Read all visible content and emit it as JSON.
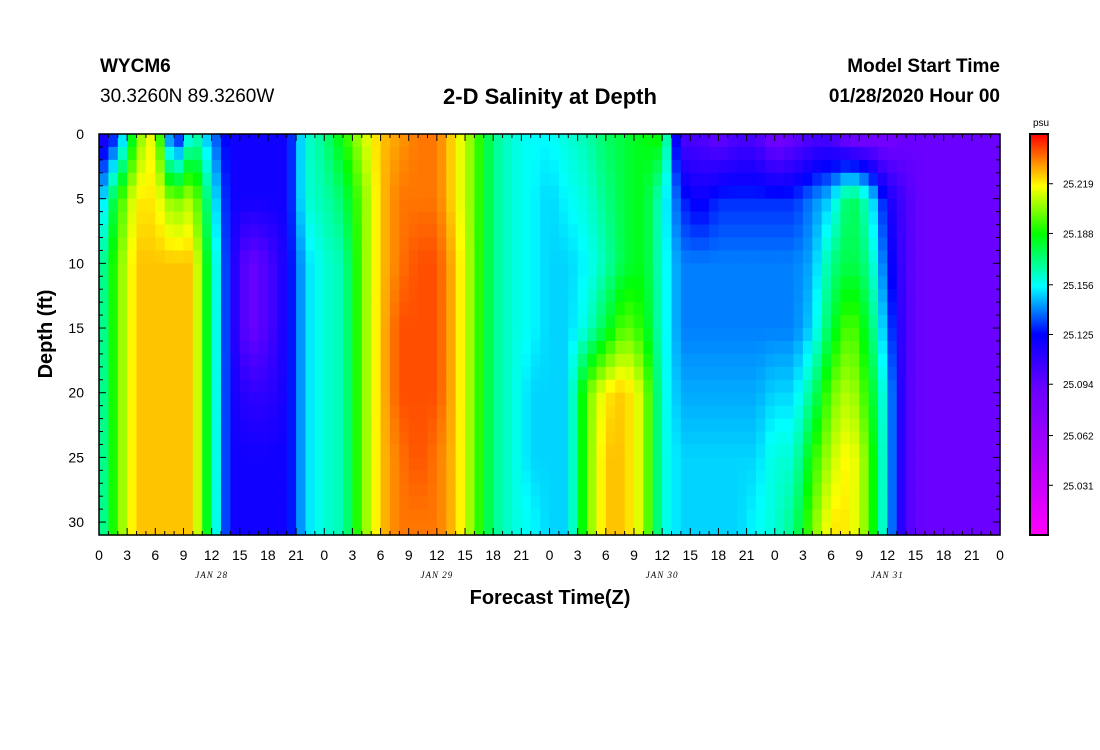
{
  "header": {
    "station": "WYCM6",
    "coords": "30.3260N 89.3260W",
    "title": "2-D Salinity at Depth",
    "start_label": "Model Start Time",
    "start_value": "01/28/2020 Hour 00"
  },
  "chart_data": {
    "type": "heatmap",
    "title": "2-D Salinity at Depth",
    "xlabel": "Forecast Time(Z)",
    "ylabel": "Depth (ft)",
    "x_tick_labels": [
      "0",
      "3",
      "6",
      "9",
      "12",
      "15",
      "18",
      "21",
      "0",
      "3",
      "6",
      "9",
      "12",
      "15",
      "18",
      "21",
      "0",
      "3",
      "6",
      "9",
      "12",
      "15",
      "18",
      "21",
      "0",
      "3",
      "6",
      "9",
      "12",
      "15",
      "18",
      "21",
      "0"
    ],
    "x_hours_range": [
      0,
      96
    ],
    "day_labels": [
      "JAN 28",
      "JAN 29",
      "JAN 30",
      "JAN 31"
    ],
    "y_ticks": [
      0,
      5,
      10,
      15,
      20,
      25,
      30
    ],
    "y_range": [
      0,
      31
    ],
    "y_inverted": true,
    "colorbar": {
      "unit": "psu",
      "range": [
        25.0,
        25.25
      ],
      "tick_labels": [
        "25.031",
        "25.062",
        "25.094",
        "25.125",
        "25.156",
        "25.188",
        "25.219"
      ]
    },
    "depth_levels_ft": [
      0,
      5,
      10,
      15,
      20,
      25,
      30
    ],
    "times_h": [
      0,
      2,
      4,
      6,
      8,
      10,
      12,
      14,
      16,
      18,
      20,
      22,
      24,
      26,
      28,
      30,
      32,
      34,
      36,
      38,
      40,
      42,
      44,
      46,
      48,
      50,
      52,
      54,
      56,
      58,
      60,
      62,
      64,
      66,
      68,
      70,
      72,
      74,
      76,
      78,
      80,
      82,
      84,
      86,
      88,
      90,
      92,
      94,
      96
    ],
    "salinity_psu": [
      [
        25.11,
        25.13,
        25.2,
        25.22,
        25.11,
        25.17,
        25.14,
        25.12,
        25.12,
        25.12,
        25.12,
        25.16,
        25.17,
        25.19,
        25.21,
        25.225,
        25.23,
        25.235,
        25.235,
        25.22,
        25.2,
        25.17,
        25.16,
        25.155,
        25.155,
        25.16,
        25.165,
        25.175,
        25.18,
        25.185,
        25.19,
        25.1,
        25.1,
        25.09,
        25.1,
        25.1,
        25.08,
        25.09,
        25.1,
        25.1,
        25.08,
        25.08,
        25.08,
        25.09,
        25.09,
        25.09,
        25.09,
        25.09,
        25.09
      ],
      [
        25.14,
        25.19,
        25.22,
        25.22,
        25.2,
        25.21,
        25.16,
        25.12,
        25.12,
        25.12,
        25.12,
        25.16,
        25.165,
        25.175,
        25.2,
        25.225,
        25.235,
        25.235,
        25.235,
        25.22,
        25.2,
        25.17,
        25.16,
        25.155,
        25.15,
        25.155,
        25.16,
        25.17,
        25.18,
        25.185,
        25.16,
        25.13,
        25.12,
        25.13,
        25.13,
        25.13,
        25.13,
        25.13,
        25.14,
        25.15,
        25.18,
        25.16,
        25.12,
        25.1,
        25.09,
        25.09,
        25.09,
        25.09,
        25.09
      ],
      [
        25.16,
        25.2,
        25.225,
        25.225,
        25.225,
        25.225,
        25.17,
        25.12,
        25.09,
        25.1,
        25.12,
        25.15,
        25.16,
        25.165,
        25.2,
        25.225,
        25.235,
        25.24,
        25.24,
        25.225,
        25.2,
        25.17,
        25.16,
        25.155,
        25.15,
        25.15,
        25.155,
        25.165,
        25.18,
        25.185,
        25.16,
        25.14,
        25.14,
        25.14,
        25.14,
        25.14,
        25.14,
        25.14,
        25.145,
        25.17,
        25.18,
        25.17,
        25.13,
        25.1,
        25.09,
        25.09,
        25.09,
        25.09,
        25.09
      ],
      [
        25.16,
        25.2,
        25.225,
        25.225,
        25.225,
        25.225,
        25.17,
        25.12,
        25.09,
        25.1,
        25.12,
        25.15,
        25.16,
        25.165,
        25.2,
        25.225,
        25.24,
        25.24,
        25.24,
        25.225,
        25.2,
        25.17,
        25.16,
        25.155,
        25.15,
        25.15,
        25.16,
        25.18,
        25.2,
        25.19,
        25.16,
        25.14,
        25.14,
        25.14,
        25.14,
        25.14,
        25.14,
        25.14,
        25.15,
        25.18,
        25.2,
        25.18,
        25.14,
        25.1,
        25.09,
        25.09,
        25.09,
        25.09,
        25.09
      ],
      [
        25.16,
        25.2,
        25.225,
        25.225,
        25.225,
        25.225,
        25.17,
        25.12,
        25.11,
        25.11,
        25.12,
        25.15,
        25.16,
        25.165,
        25.2,
        25.225,
        25.24,
        25.24,
        25.24,
        25.225,
        25.2,
        25.17,
        25.16,
        25.15,
        25.15,
        25.15,
        25.2,
        25.22,
        25.225,
        25.21,
        25.16,
        25.145,
        25.145,
        25.145,
        25.145,
        25.145,
        25.15,
        25.15,
        25.17,
        25.2,
        25.21,
        25.19,
        25.15,
        25.1,
        25.09,
        25.09,
        25.09,
        25.09,
        25.09
      ],
      [
        25.16,
        25.2,
        25.225,
        25.225,
        25.225,
        25.225,
        25.17,
        25.12,
        25.12,
        25.12,
        25.12,
        25.15,
        25.16,
        25.165,
        25.2,
        25.225,
        25.235,
        25.24,
        25.235,
        25.225,
        25.2,
        25.17,
        25.16,
        25.15,
        25.15,
        25.15,
        25.2,
        25.225,
        25.225,
        25.21,
        25.16,
        25.15,
        25.15,
        25.15,
        25.15,
        25.15,
        25.16,
        25.16,
        25.19,
        25.21,
        25.22,
        25.2,
        25.15,
        25.1,
        25.09,
        25.09,
        25.09,
        25.09,
        25.09
      ],
      [
        25.16,
        25.2,
        25.225,
        25.225,
        25.225,
        25.225,
        25.17,
        25.12,
        25.12,
        25.12,
        25.12,
        25.15,
        25.16,
        25.165,
        25.2,
        25.225,
        25.235,
        25.235,
        25.235,
        25.225,
        25.2,
        25.17,
        25.16,
        25.155,
        25.15,
        25.15,
        25.2,
        25.225,
        25.225,
        25.21,
        25.16,
        25.15,
        25.15,
        25.15,
        25.15,
        25.155,
        25.16,
        25.17,
        25.2,
        25.22,
        25.22,
        25.2,
        25.15,
        25.1,
        25.09,
        25.09,
        25.09,
        25.09,
        25.09
      ]
    ]
  }
}
